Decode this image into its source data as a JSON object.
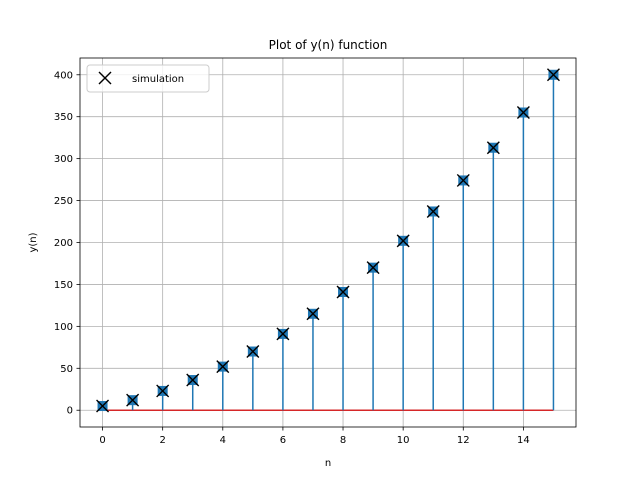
{
  "chart_data": {
    "type": "stem",
    "title": "Plot of y(n) function",
    "xlabel": "n",
    "ylabel": "y(n)",
    "x": [
      0,
      1,
      2,
      3,
      4,
      5,
      6,
      7,
      8,
      9,
      10,
      11,
      12,
      13,
      14,
      15
    ],
    "series": [
      {
        "name": "simulation",
        "values": [
          5,
          12,
          23,
          36,
          52,
          70,
          91,
          115,
          141,
          170,
          202,
          237,
          274,
          313,
          355,
          400
        ]
      }
    ],
    "xlim": [
      -0.75,
      15.75
    ],
    "ylim": [
      -20,
      420
    ],
    "xticks": [
      0,
      2,
      4,
      6,
      8,
      10,
      12,
      14
    ],
    "yticks": [
      0,
      50,
      100,
      150,
      200,
      250,
      300,
      350,
      400
    ],
    "grid": true,
    "legend_position": "upper-left",
    "colors": {
      "stem": "#1f77b4",
      "marker": "#1f77b4",
      "baseline": "#d62728",
      "x_marker": "#000000",
      "grid": "#b0b0b0",
      "axes": "#000000"
    }
  }
}
